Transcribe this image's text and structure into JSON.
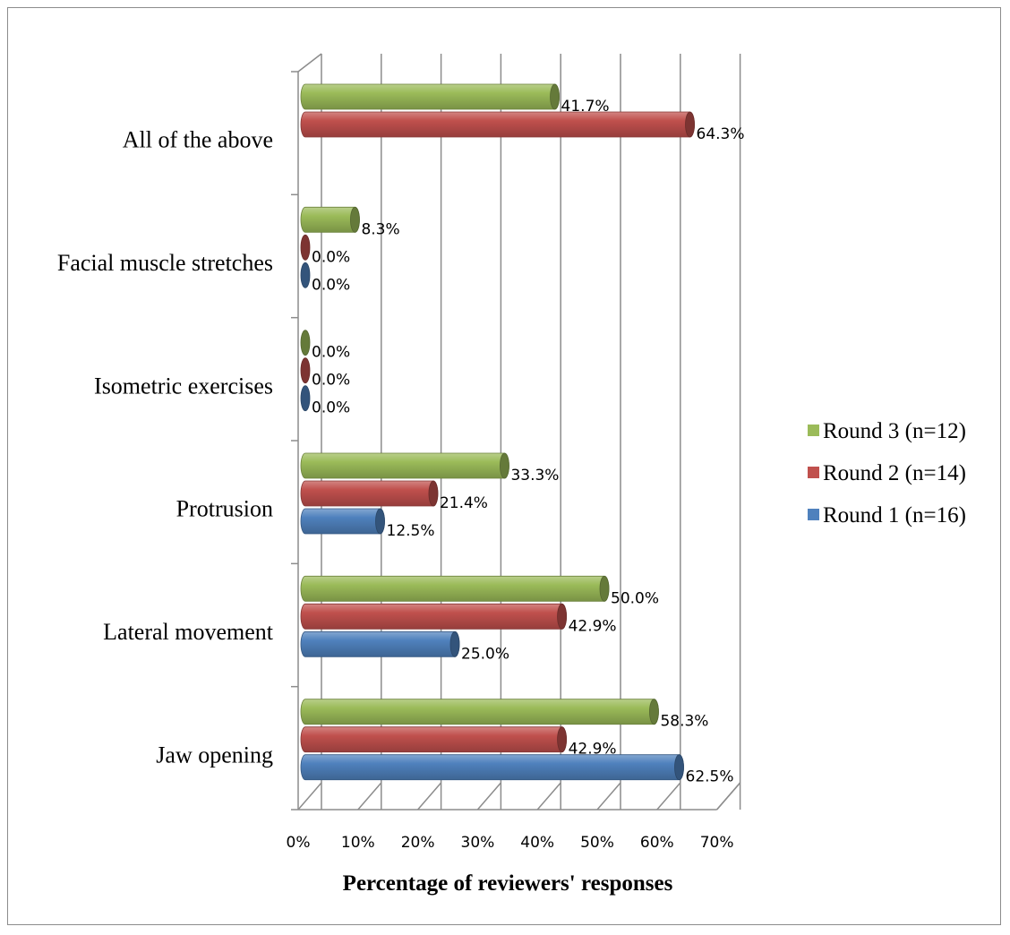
{
  "chart_data": {
    "type": "bar",
    "orientation": "horizontal",
    "style": "3d-cylinder",
    "categories": [
      "All of the above",
      "Facial muscle stretches",
      "Isometric exercises",
      "Protrusion",
      "Lateral movement",
      "Jaw opening"
    ],
    "series": [
      {
        "name": "Round 3 (n=12)",
        "color": "#9bbb59",
        "values": [
          41.7,
          8.3,
          0.0,
          33.3,
          50.0,
          58.3
        ],
        "labels": [
          "41.7%",
          "8.3%",
          "0.0%",
          "33.3%",
          "50.0%",
          "58.3%"
        ]
      },
      {
        "name": "Round 2 (n=14)",
        "color": "#c0504d",
        "values": [
          64.3,
          0.0,
          0.0,
          21.4,
          42.9,
          42.9
        ],
        "labels": [
          "64.3%",
          "0.0%",
          "0.0%",
          "21.4%",
          "42.9%",
          "42.9%"
        ]
      },
      {
        "name": "Round 1 (n=16)",
        "color": "#4f81bd",
        "values": [
          null,
          0.0,
          0.0,
          12.5,
          25.0,
          62.5
        ],
        "labels": [
          null,
          "0.0%",
          "0.0%",
          "12.5%",
          "25.0%",
          "62.5%"
        ]
      }
    ],
    "xlabel": "Percentage of reviewers' responses",
    "xlim": [
      0,
      70
    ],
    "xticks": [
      "0%",
      "10%",
      "20%",
      "30%",
      "40%",
      "50%",
      "60%",
      "70%"
    ],
    "grid": true,
    "legend_position": "right"
  }
}
